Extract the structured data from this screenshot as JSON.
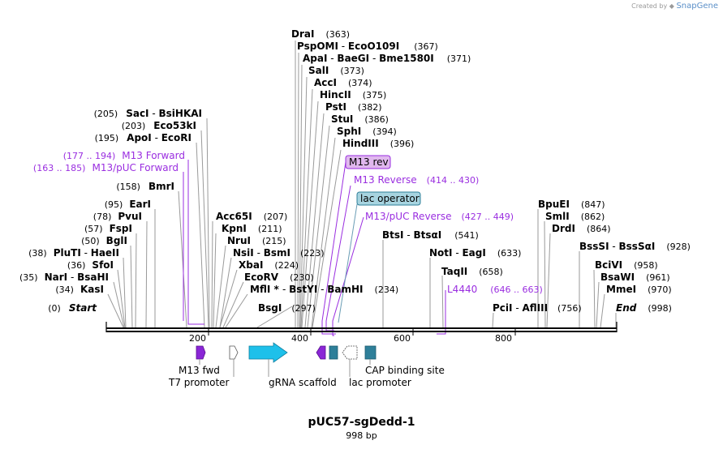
{
  "credit": {
    "prefix": "Created by",
    "brand": "SnapGene"
  },
  "plasmid": {
    "name": "pUC57-sgDedd-1",
    "length": "998 bp"
  },
  "ruler": [
    "200",
    "400",
    "600",
    "800"
  ],
  "sites": {
    "dra": {
      "n": "DraI",
      "p": "(363)"
    },
    "psp": {
      "n": "PspOMI",
      "s1": " - ",
      "n2": "EcoO109I",
      "p": "(367)"
    },
    "apa": {
      "n": "ApaI",
      "s1": " - ",
      "n2": "BaeGI",
      "s2": " - ",
      "n3": "Bme1580I",
      "p": "(371)"
    },
    "sal": {
      "n": "SalI",
      "p": "(373)"
    },
    "acc": {
      "n": "AccI",
      "p": "(374)"
    },
    "hinc": {
      "n": "HincII",
      "p": "(375)"
    },
    "pst": {
      "n": "PstI",
      "p": "(382)"
    },
    "stu": {
      "n": "StuI",
      "p": "(386)"
    },
    "sph": {
      "n": "SphI",
      "p": "(394)"
    },
    "hind": {
      "n": "HindIII",
      "p": "(396)"
    },
    "sac": {
      "p": "(205)",
      "n": "SacI",
      "s1": " - ",
      "n2": "BsiHKAI"
    },
    "eco53": {
      "p": "(203)",
      "n": "Eco53kI"
    },
    "apo": {
      "p": "(195)",
      "n": "ApoI",
      "s1": " - ",
      "n2": "EcoRI"
    },
    "bmr": {
      "p": "(158)",
      "n": "BmrI"
    },
    "ear": {
      "p": "(95)",
      "n": "EarI"
    },
    "pvu": {
      "p": "(78)",
      "n": "PvuI"
    },
    "fsp": {
      "p": "(57)",
      "n": "FspI"
    },
    "bgl": {
      "p": "(50)",
      "n": "BglI"
    },
    "plu": {
      "p": "(38)",
      "n": "PluTI",
      "s1": " - ",
      "n2": "HaeII"
    },
    "sfo": {
      "p": "(36)",
      "n": "SfoI"
    },
    "nar": {
      "p": "(35)",
      "n": "NarI",
      "s1": " - ",
      "n2": "BsaHI"
    },
    "kas": {
      "p": "(34)",
      "n": "KasI"
    },
    "start": {
      "p": "(0)",
      "n": "Start"
    },
    "acc65": {
      "n": "Acc65I",
      "p": "(207)"
    },
    "kpn": {
      "n": "KpnI",
      "p": "(211)"
    },
    "nru": {
      "n": "NruI",
      "p": "(215)"
    },
    "nsi": {
      "n": "NsiI",
      "s1": " - ",
      "n2": "BsmI",
      "p": "(223)"
    },
    "xba": {
      "n": "XbaI",
      "p": "(224)"
    },
    "ecorv": {
      "n": "EcoRV",
      "p": "(230)"
    },
    "mfl": {
      "n": "MflI",
      "star": " * ",
      "s1": "- ",
      "n2": "BstYI",
      "s2": " - ",
      "n3": "BamHI",
      "p": "(234)"
    },
    "bsg": {
      "n": "BsgI",
      "p": "(297)"
    },
    "bts": {
      "n": "BtsI",
      "s1": " - ",
      "n2": "BtsαI",
      "p": "(541)"
    },
    "not": {
      "n": "NotI",
      "s1": " - ",
      "n2": "EagI",
      "p": "(633)"
    },
    "taq": {
      "n": "TaqII",
      "p": "(658)"
    },
    "pci": {
      "n": "PciI",
      "s1": " - ",
      "n2": "AflIII",
      "p": "(756)"
    },
    "bpu": {
      "n": "BpuEI",
      "p": "(847)"
    },
    "sml": {
      "n": "SmlI",
      "p": "(862)"
    },
    "drd": {
      "n": "DrdI",
      "p": "(864)"
    },
    "bssi": {
      "n": "BssSI",
      "s1": " - ",
      "n2": "BssSαI",
      "p": "(928)"
    },
    "bci": {
      "n": "BciVI",
      "p": "(958)"
    },
    "bsaw": {
      "n": "BsaWI",
      "p": "(961)"
    },
    "mme": {
      "n": "MmeI",
      "p": "(970)"
    },
    "end": {
      "n": "End",
      "p": "(998)"
    }
  },
  "primers": {
    "m13fwd": {
      "range": "(177 .. 194)",
      "name": "M13 Forward"
    },
    "m13puc": {
      "range": "(163 .. 185)",
      "name": "M13/pUC Forward"
    },
    "m13rev_tag": "M13 rev",
    "m13reverse": {
      "name": "M13 Reverse",
      "range": "(414 .. 430)"
    },
    "m13pucrev": {
      "name": "M13/pUC Reverse",
      "range": "(427 .. 449)"
    },
    "l4440": {
      "name": "L4440",
      "range": "(646 .. 663)"
    }
  },
  "lac_operator": "lac operator",
  "features": {
    "m13fwd": "M13 fwd",
    "t7": "T7 promoter",
    "grna": "gRNA scaffold",
    "lac": "lac promoter",
    "cap": "CAP binding site"
  },
  "colors": {
    "primer": "#9a2ee0",
    "scaffold": "#1ec0ea",
    "box": "#2e7f99",
    "tag": "#a7d4e0"
  }
}
